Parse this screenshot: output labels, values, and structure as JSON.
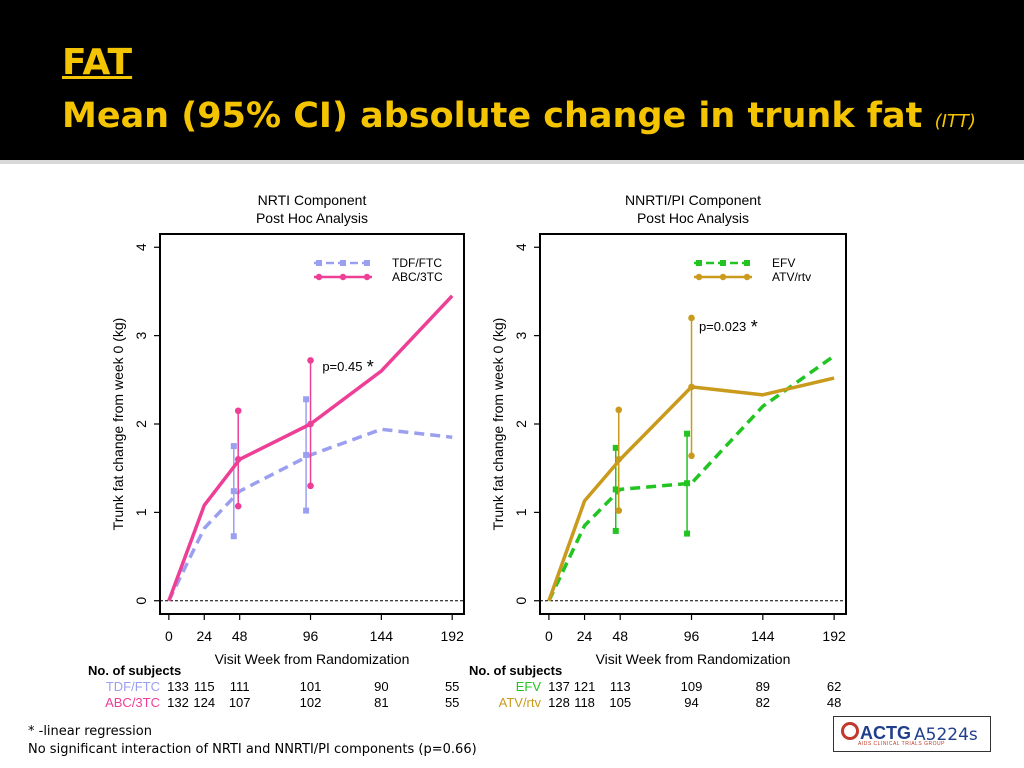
{
  "slide": {
    "title_line1": "FAT",
    "title_line2": "Mean (95% CI) absolute change in trunk fat",
    "title_suffix": "(ITT)"
  },
  "footnotes": {
    "line1": "* -linear regression",
    "line2": "No significant interaction of NRTI and NNRTI/PI components (p=0.66)"
  },
  "logo": {
    "text": "ACTG",
    "subtext": "AIDS CLINICAL TRIALS GROUP",
    "study": "A5224s"
  },
  "chart_data": [
    {
      "type": "line",
      "title": "NRTI Component",
      "subtitle": "Post Hoc Analysis",
      "xlabel": "Visit Week from Randomization",
      "ylabel": "Trunk fat change from week 0 (kg)",
      "xlim": [
        -6,
        200
      ],
      "ylim": [
        -0.15,
        4.15
      ],
      "xticks": [
        0,
        24,
        48,
        96,
        144,
        192
      ],
      "yticks": [
        0,
        1,
        2,
        3,
        4
      ],
      "reference_line_y": 0,
      "legend_position": "top-right",
      "annotation": {
        "text": "p=0.45",
        "star": "*",
        "x": 104,
        "y": 2.6
      },
      "series": [
        {
          "name": "TDF/FTC",
          "color": "#9b9ff0",
          "dashed": true,
          "marker": "square",
          "x": [
            0,
            24,
            48,
            96,
            144,
            192
          ],
          "y": [
            0.0,
            0.82,
            1.24,
            1.65,
            1.94,
            1.85
          ],
          "ci": [
            {
              "x": 44,
              "low": 0.73,
              "high": 1.75,
              "mean": 1.24
            },
            {
              "x": 93,
              "low": 1.02,
              "high": 2.28,
              "mean": 1.65
            }
          ]
        },
        {
          "name": "ABC/3TC",
          "color": "#ee3f96",
          "dashed": false,
          "marker": "circle",
          "x": [
            0,
            24,
            48,
            96,
            144,
            192
          ],
          "y": [
            0.0,
            1.08,
            1.6,
            2.0,
            2.6,
            3.45
          ],
          "ci": [
            {
              "x": 47,
              "low": 1.07,
              "high": 2.15,
              "mean": 1.6
            },
            {
              "x": 96,
              "low": 1.3,
              "high": 2.72,
              "mean": 2.0
            }
          ]
        }
      ],
      "subjects": {
        "header": "No. of subjects",
        "weeks": [
          0,
          24,
          48,
          96,
          144,
          192
        ],
        "rows": [
          {
            "name": "TDF/FTC",
            "counts": [
              "133",
              "115",
              "111",
              "101",
              "90",
              "55"
            ]
          },
          {
            "name": "ABC/3TC",
            "counts": [
              "132",
              "124",
              "107",
              "102",
              "81",
              "55"
            ]
          }
        ]
      }
    },
    {
      "type": "line",
      "title": "NNRTI/PI Component",
      "subtitle": "Post Hoc Analysis",
      "xlabel": "Visit Week from Randomization",
      "ylabel": "Trunk fat change from week 0 (kg)",
      "xlim": [
        -6,
        200
      ],
      "ylim": [
        -0.15,
        4.15
      ],
      "xticks": [
        0,
        24,
        48,
        96,
        144,
        192
      ],
      "yticks": [
        0,
        1,
        2,
        3,
        4
      ],
      "reference_line_y": 0,
      "legend_position": "top-right",
      "annotation": {
        "text": "p=0.023",
        "star": "*",
        "x": 101,
        "y": 3.05
      },
      "series": [
        {
          "name": "EFV",
          "color": "#22c422",
          "dashed": true,
          "marker": "square",
          "x": [
            0,
            24,
            48,
            96,
            144,
            192
          ],
          "y": [
            0.0,
            0.85,
            1.26,
            1.33,
            2.2,
            2.77
          ],
          "ci": [
            {
              "x": 45,
              "low": 0.79,
              "high": 1.73,
              "mean": 1.26
            },
            {
              "x": 93,
              "low": 0.76,
              "high": 1.89,
              "mean": 1.33
            }
          ]
        },
        {
          "name": "ATV/rtv",
          "color": "#c99a1c",
          "dashed": false,
          "marker": "circle",
          "x": [
            0,
            24,
            48,
            96,
            144,
            192
          ],
          "y": [
            0.0,
            1.13,
            1.6,
            2.42,
            2.33,
            2.52
          ],
          "ci": [
            {
              "x": 47,
              "low": 1.02,
              "high": 2.16,
              "mean": 1.6
            },
            {
              "x": 96,
              "low": 1.64,
              "high": 3.2,
              "mean": 2.42
            }
          ]
        }
      ],
      "subjects": {
        "header": "No. of subjects",
        "weeks": [
          0,
          24,
          48,
          96,
          144,
          192
        ],
        "rows": [
          {
            "name": "EFV",
            "counts": [
              "137",
              "121",
              "113",
              "109",
              "89",
              "62"
            ]
          },
          {
            "name": "ATV/rtv",
            "counts": [
              "128",
              "118",
              "105",
              "94",
              "82",
              "48"
            ]
          }
        ]
      }
    }
  ]
}
